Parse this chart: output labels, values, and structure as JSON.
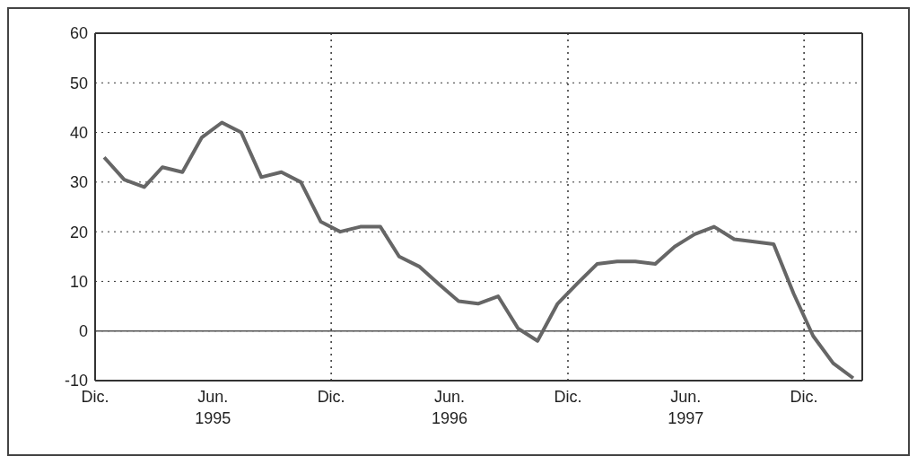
{
  "chart_data": {
    "type": "line",
    "x": [
      "1994-12-15",
      "1995-01-15",
      "1995-02-15",
      "1995-03-15",
      "1995-04-15",
      "1995-05-15",
      "1995-06-15",
      "1995-07-15",
      "1995-08-15",
      "1995-09-15",
      "1995-10-15",
      "1995-11-15",
      "1995-12-15",
      "1996-01-15",
      "1996-02-15",
      "1996-03-15",
      "1996-04-15",
      "1996-05-15",
      "1996-06-15",
      "1996-07-15",
      "1996-08-15",
      "1996-09-15",
      "1996-10-15",
      "1996-11-15",
      "1996-12-15",
      "1997-01-15",
      "1997-02-15",
      "1997-03-15",
      "1997-04-15",
      "1997-05-15",
      "1997-06-15",
      "1997-07-15",
      "1997-08-15",
      "1997-09-15",
      "1997-10-15",
      "1997-11-15",
      "1997-12-15",
      "1998-01-15",
      "1998-02-15"
    ],
    "series": [
      {
        "color": "#666666",
        "values": [
          35,
          30.5,
          29,
          33,
          32,
          39,
          42,
          40,
          31,
          32,
          30,
          22,
          20,
          21,
          21,
          15,
          13,
          9.5,
          6,
          5.5,
          7,
          0.5,
          -2,
          5.5,
          9.5,
          13.5,
          14,
          14,
          13.5,
          17,
          19.5,
          21,
          18.5,
          18,
          17.5,
          7.5,
          -1,
          -6.5,
          -9.5
        ]
      }
    ],
    "xlim": [
      "1994-12-01",
      "1998-03-01"
    ],
    "xticks": [
      {
        "value": "1994-12-01",
        "label": "Dic."
      },
      {
        "value": "1995-06-01",
        "label": "Jun.\n1995"
      },
      {
        "value": "1995-12-01",
        "label": "Dic."
      },
      {
        "value": "1996-06-01",
        "label": "Jun.\n1996"
      },
      {
        "value": "1996-12-01",
        "label": "Dic."
      },
      {
        "value": "1997-06-01",
        "label": "Jun.\n1997"
      },
      {
        "value": "1997-12-01",
        "label": "Dic."
      }
    ],
    "ylim": [
      -10,
      60
    ],
    "yticks": [
      -10,
      0,
      10,
      20,
      30,
      40,
      50,
      60
    ],
    "grid": "y",
    "legend": false,
    "marker": "none",
    "line_style": "solid",
    "ref_lines": [
      {
        "axis": "y",
        "value": 0,
        "color": "#555555",
        "line_style": "solid"
      },
      {
        "axis": "x",
        "value": "1995-12-01",
        "color": "#333333",
        "line_style": "dotted"
      },
      {
        "axis": "x",
        "value": "1996-12-01",
        "color": "#333333",
        "line_style": "dotted"
      },
      {
        "axis": "x",
        "value": "1997-12-01",
        "color": "#333333",
        "line_style": "dotted"
      }
    ]
  }
}
